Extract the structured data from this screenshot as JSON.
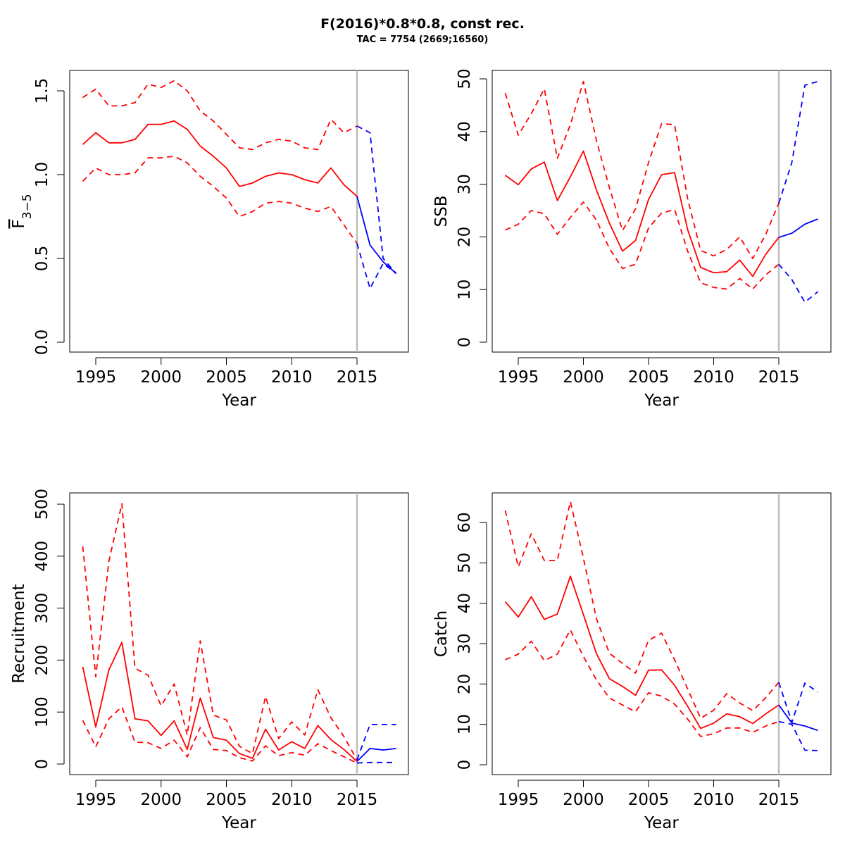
{
  "figure": {
    "title": "F(2016)*0.8*0.8, const rec.",
    "subtitle": "TAC = 7754 (2669;16560)"
  },
  "colors": {
    "historical": "#ff0000",
    "projection": "#0000ff",
    "reference_line": "#bebebe",
    "axis": "#000000"
  },
  "chart_data": [
    {
      "id": "fbar",
      "type": "line",
      "xlabel": "Year",
      "ylabel": "F",
      "ylabel_subscript": "3−5",
      "xlim": [
        1994,
        2018
      ],
      "ylim": [
        0,
        1.5
      ],
      "xticks": [
        1995,
        2000,
        2005,
        2010,
        2015
      ],
      "yticks": [
        0.0,
        0.5,
        1.0,
        1.5
      ],
      "ytick_labels": [
        "0.0",
        "0.5",
        "1.0",
        "1.5"
      ],
      "reference_year": 2015,
      "historical": {
        "x": [
          1994,
          1995,
          1996,
          1997,
          1998,
          1999,
          2000,
          2001,
          2002,
          2003,
          2004,
          2005,
          2006,
          2007,
          2008,
          2009,
          2010,
          2011,
          2012,
          2013,
          2014,
          2015
        ],
        "median": [
          1.18,
          1.25,
          1.19,
          1.19,
          1.21,
          1.3,
          1.3,
          1.32,
          1.27,
          1.17,
          1.11,
          1.04,
          0.93,
          0.95,
          0.99,
          1.01,
          1.0,
          0.97,
          0.95,
          1.04,
          0.94,
          0.87
        ],
        "upper": [
          1.46,
          1.51,
          1.41,
          1.41,
          1.43,
          1.54,
          1.52,
          1.56,
          1.5,
          1.38,
          1.32,
          1.24,
          1.16,
          1.15,
          1.19,
          1.21,
          1.2,
          1.16,
          1.15,
          1.33,
          1.25,
          1.29
        ],
        "lower": [
          0.96,
          1.04,
          1.0,
          1.0,
          1.01,
          1.1,
          1.1,
          1.11,
          1.07,
          0.99,
          0.93,
          0.86,
          0.75,
          0.78,
          0.83,
          0.84,
          0.83,
          0.8,
          0.78,
          0.81,
          0.7,
          0.59
        ]
      },
      "projection": {
        "x": [
          2015,
          2016,
          2017,
          2018
        ],
        "median": [
          0.87,
          0.58,
          0.48,
          0.41
        ],
        "upper": [
          1.29,
          1.25,
          0.5,
          0.41
        ],
        "lower": [
          0.59,
          0.32,
          0.47,
          0.41
        ]
      }
    },
    {
      "id": "ssb",
      "type": "line",
      "xlabel": "Year",
      "ylabel": "SSB",
      "xlim": [
        1994,
        2018
      ],
      "ylim": [
        0,
        50
      ],
      "xticks": [
        1995,
        2000,
        2005,
        2010,
        2015
      ],
      "yticks": [
        0,
        10,
        20,
        30,
        40,
        50
      ],
      "ytick_labels": [
        "0",
        "10",
        "20",
        "30",
        "40",
        "50"
      ],
      "reference_year": 2015,
      "historical": {
        "x": [
          1994,
          1995,
          1996,
          1997,
          1998,
          1999,
          2000,
          2001,
          2002,
          2003,
          2004,
          2005,
          2006,
          2007,
          2008,
          2009,
          2010,
          2011,
          2012,
          2013,
          2014,
          2015
        ],
        "median": [
          31.7,
          29.9,
          32.9,
          34.2,
          26.9,
          31.4,
          36.3,
          28.9,
          22.6,
          17.3,
          19.3,
          27.1,
          31.8,
          32.2,
          21.4,
          14.2,
          13.2,
          13.4,
          15.6,
          12.5,
          16.7,
          19.9
        ],
        "upper": [
          47.3,
          39.3,
          43.4,
          48.1,
          34.9,
          41.3,
          49.5,
          38.3,
          29.3,
          21.2,
          25.3,
          34.1,
          41.5,
          41.3,
          27.3,
          17.4,
          16.4,
          17.6,
          20.0,
          15.9,
          20.5,
          26.4
        ],
        "lower": [
          21.3,
          22.4,
          25.0,
          24.4,
          20.5,
          23.7,
          26.6,
          23.2,
          17.8,
          14.0,
          14.8,
          21.7,
          24.5,
          25.2,
          17.3,
          11.3,
          10.4,
          10.1,
          12.1,
          10.1,
          12.8,
          14.8
        ]
      },
      "projection": {
        "x": [
          2015,
          2016,
          2017,
          2018
        ],
        "median": [
          19.9,
          20.7,
          22.4,
          23.4
        ],
        "upper": [
          26.4,
          34.1,
          48.8,
          49.5
        ],
        "lower": [
          14.8,
          11.9,
          7.6,
          9.6
        ]
      }
    },
    {
      "id": "recruitment",
      "type": "line",
      "xlabel": "Year",
      "ylabel": "Recruitment",
      "xlim": [
        1994,
        2018
      ],
      "ylim": [
        0,
        500
      ],
      "xticks": [
        1995,
        2000,
        2005,
        2010,
        2015
      ],
      "yticks": [
        0,
        100,
        200,
        300,
        400,
        500
      ],
      "ytick_labels": [
        "0",
        "100",
        "200",
        "300",
        "400",
        "500"
      ],
      "reference_year": 2015,
      "historical": {
        "x": [
          1994,
          1995,
          1996,
          1997,
          1998,
          1999,
          2000,
          2001,
          2002,
          2003,
          2004,
          2005,
          2006,
          2007,
          2008,
          2009,
          2010,
          2011,
          2012,
          2013,
          2014,
          2015
        ],
        "median": [
          187,
          71,
          181,
          234,
          87,
          83,
          55,
          83,
          28,
          127,
          51,
          46,
          20,
          11,
          67,
          27,
          43,
          30,
          74,
          47,
          28,
          5
        ],
        "upper": [
          419,
          168,
          390,
          501,
          184,
          171,
          112,
          154,
          56,
          237,
          94,
          85,
          34,
          20,
          130,
          49,
          81,
          56,
          143,
          89,
          53,
          8
        ],
        "lower": [
          84,
          33,
          87,
          110,
          42,
          41,
          30,
          46,
          14,
          70,
          28,
          26,
          12,
          6,
          35,
          16,
          22,
          17,
          39,
          26,
          14,
          2
        ]
      },
      "projection": {
        "x": [
          2015,
          2016,
          2017,
          2018
        ],
        "median": [
          5,
          30,
          27,
          30
        ],
        "upper": [
          8,
          76,
          76,
          76
        ],
        "lower": [
          2,
          3,
          3,
          3
        ]
      }
    },
    {
      "id": "catch",
      "type": "line",
      "xlabel": "Year",
      "ylabel": "Catch",
      "xlim": [
        1994,
        2018
      ],
      "ylim": [
        0,
        65
      ],
      "xticks": [
        1995,
        2000,
        2005,
        2010,
        2015
      ],
      "yticks": [
        0,
        10,
        20,
        30,
        40,
        50,
        60
      ],
      "ytick_labels": [
        "0",
        "10",
        "20",
        "30",
        "40",
        "50",
        "60"
      ],
      "reference_year": 2015,
      "historical": {
        "x": [
          1994,
          1995,
          1996,
          1997,
          1998,
          1999,
          2000,
          2001,
          2002,
          2003,
          2004,
          2005,
          2006,
          2007,
          2008,
          2009,
          2010,
          2011,
          2012,
          2013,
          2014,
          2015
        ],
        "median": [
          40.4,
          36.6,
          41.6,
          36.0,
          37.3,
          46.7,
          37.2,
          27.5,
          21.3,
          19.4,
          17.2,
          23.4,
          23.5,
          19.7,
          14.5,
          9.0,
          10.3,
          12.6,
          11.9,
          10.2,
          12.6,
          14.8
        ],
        "upper": [
          63.0,
          49.0,
          57.2,
          50.6,
          50.6,
          65.2,
          51.2,
          36.2,
          27.6,
          25.1,
          22.7,
          30.8,
          32.6,
          26.0,
          18.8,
          11.5,
          13.5,
          17.6,
          15.3,
          13.4,
          16.6,
          20.4
        ],
        "lower": [
          26.0,
          27.4,
          30.6,
          25.8,
          27.4,
          33.4,
          26.8,
          21.0,
          16.5,
          14.8,
          13.1,
          17.8,
          17.0,
          15.0,
          11.3,
          7.0,
          7.7,
          9.1,
          9.1,
          8.0,
          9.6,
          10.7
        ]
      },
      "projection": {
        "x": [
          2015,
          2016,
          2017,
          2018
        ],
        "median": [
          14.8,
          10.3,
          9.6,
          8.5
        ],
        "upper": [
          20.4,
          10.5,
          20.2,
          18.0
        ],
        "lower": [
          10.7,
          10.0,
          3.6,
          3.5
        ]
      }
    }
  ]
}
